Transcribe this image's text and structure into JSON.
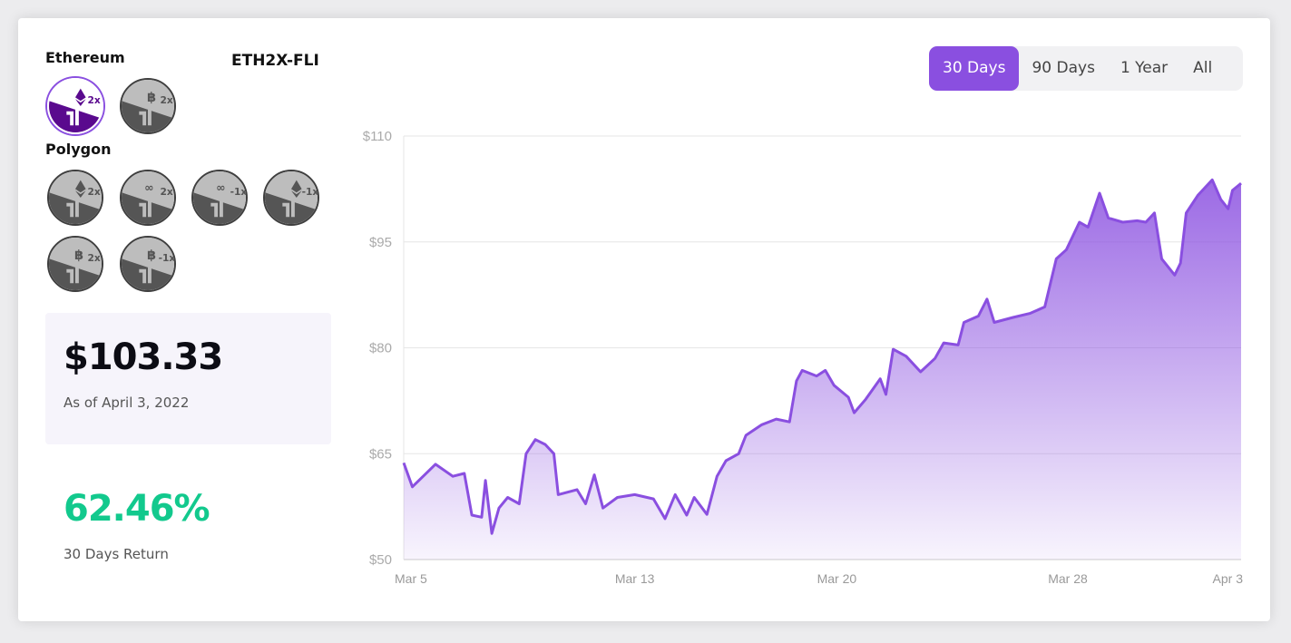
{
  "sections": {
    "ethereum_label": "Ethereum",
    "polygon_label": "Polygon"
  },
  "selected_token": "ETH2X-FLI",
  "tokens": {
    "ethereum": [
      {
        "symbol": "eth",
        "mult": "2x",
        "selected": true
      },
      {
        "symbol": "btc",
        "mult": "2x",
        "selected": false
      }
    ],
    "polygon": [
      {
        "symbol": "eth",
        "mult": "2x"
      },
      {
        "symbol": "matic",
        "mult": "2x"
      },
      {
        "symbol": "matic",
        "mult": "-1x"
      },
      {
        "symbol": "eth",
        "mult": "-1x"
      },
      {
        "symbol": "btc",
        "mult": "2x"
      },
      {
        "symbol": "btc",
        "mult": "-1x"
      }
    ]
  },
  "price": {
    "value": "$103.33",
    "as_of": "As of April 3, 2022"
  },
  "return": {
    "value": "62.46%",
    "label": "30 Days Return"
  },
  "tabs": [
    {
      "label": "30 Days",
      "active": true
    },
    {
      "label": "90 Days",
      "active": false
    },
    {
      "label": "1 Year",
      "active": false
    },
    {
      "label": "All",
      "active": false
    }
  ],
  "colors": {
    "accent": "#8a4fe0",
    "return": "#12c98d"
  },
  "chart_data": {
    "type": "area",
    "title": "",
    "xlabel": "",
    "ylabel": "",
    "xlim": [
      0,
      29
    ],
    "ylim": [
      50,
      110
    ],
    "grid": true,
    "y_ticks": [
      50,
      65,
      80,
      95,
      110
    ],
    "y_tick_labels": [
      "$50",
      "$65",
      "$80",
      "$95",
      "$110"
    ],
    "x_ticks": [
      0,
      8,
      15,
      23,
      29
    ],
    "x_tick_labels": [
      "Mar 5",
      "Mar 13",
      "Mar 20",
      "Mar 28",
      "Apr 3"
    ],
    "x_unit": "days since Mar 5, 2022",
    "series": [
      {
        "name": "ETH2X-FLI price",
        "x": [
          0,
          0.3,
          1.1,
          1.7,
          2.1,
          2.36,
          2.7,
          2.83,
          3.05,
          3.3,
          3.6,
          4.0,
          4.24,
          4.56,
          4.9,
          5.2,
          5.35,
          6,
          6.3,
          6.6,
          6.9,
          7.4,
          8,
          8.65,
          9.05,
          9.4,
          9.8,
          10.06,
          10.5,
          10.85,
          11.16,
          11.6,
          11.85,
          12.4,
          12.9,
          13.36,
          13.6,
          13.8,
          14.3,
          14.6,
          14.9,
          15.4,
          15.6,
          16,
          16.5,
          16.7,
          16.95,
          17.4,
          17.9,
          18.4,
          18.7,
          19.2,
          19.4,
          19.9,
          20.2,
          20.45,
          21.1,
          21.7,
          22.2,
          22.6,
          22.95,
          23.4,
          23.7,
          24.1,
          24.4,
          24.9,
          25.4,
          25.7,
          26.0,
          26.25,
          26.7,
          26.9,
          27.1,
          27.5,
          28,
          28.3,
          28.55,
          28.7,
          29
        ],
        "y": [
          63.7,
          60.3,
          63.5,
          61.8,
          62.2,
          56.3,
          56,
          61.2,
          53.7,
          57.3,
          58.8,
          57.9,
          65,
          67,
          66.3,
          65,
          59.2,
          59.9,
          57.9,
          62,
          57.3,
          58.8,
          59.2,
          58.6,
          55.8,
          59.2,
          56.3,
          58.8,
          56.4,
          61.8,
          64,
          65,
          67.6,
          69.1,
          69.9,
          69.5,
          75.3,
          76.8,
          76,
          76.8,
          74.7,
          73,
          70.8,
          72.7,
          75.6,
          73.4,
          79.8,
          78.8,
          76.6,
          78.5,
          80.7,
          80.4,
          83.6,
          84.5,
          86.9,
          83.6,
          84.3,
          84.9,
          85.8,
          92.6,
          93.9,
          97.8,
          97.1,
          101.9,
          98.4,
          97.8,
          98,
          97.8,
          99.1,
          92.6,
          90.3,
          92,
          99.1,
          101.6,
          103.8,
          101,
          99.7,
          102.3,
          103.3
        ]
      }
    ]
  }
}
